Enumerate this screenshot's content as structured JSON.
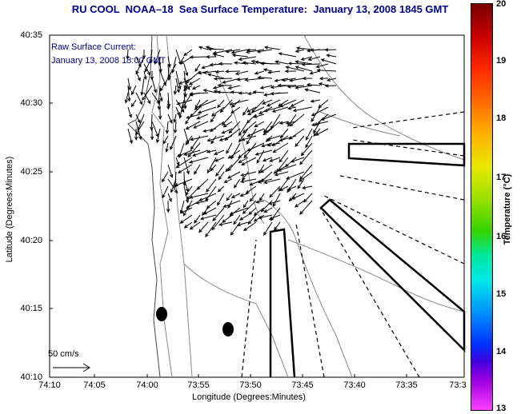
{
  "title": "RU COOL  NOAA–18  Sea Surface Temperature:  January 13, 2008 1845 GMT",
  "annotation": {
    "line1": "Raw Surface Current:",
    "line2": "January 13, 2008 18:00 GMT"
  },
  "scale_label": "50 cm/s",
  "x_axis": {
    "label": "Longitude (Degrees:Minutes)",
    "ticks": [
      "74:10",
      "74:05",
      "74:00",
      "73:55",
      "73:50",
      "73:45",
      "73:40",
      "73:35",
      "73:3"
    ]
  },
  "y_axis": {
    "label": "Latitude (Degrees:Minutes)",
    "ticks": [
      "40:35",
      "40:30",
      "40:25",
      "40:20",
      "40:15",
      "40:10"
    ]
  },
  "colorbar": {
    "label": "Temperature (°C)",
    "ticks": [
      "20",
      "19",
      "18",
      "17",
      "16",
      "15",
      "14",
      "13"
    ]
  },
  "colors": {
    "title": "#000090",
    "land_line": "#808080",
    "frame": "#000000"
  }
}
